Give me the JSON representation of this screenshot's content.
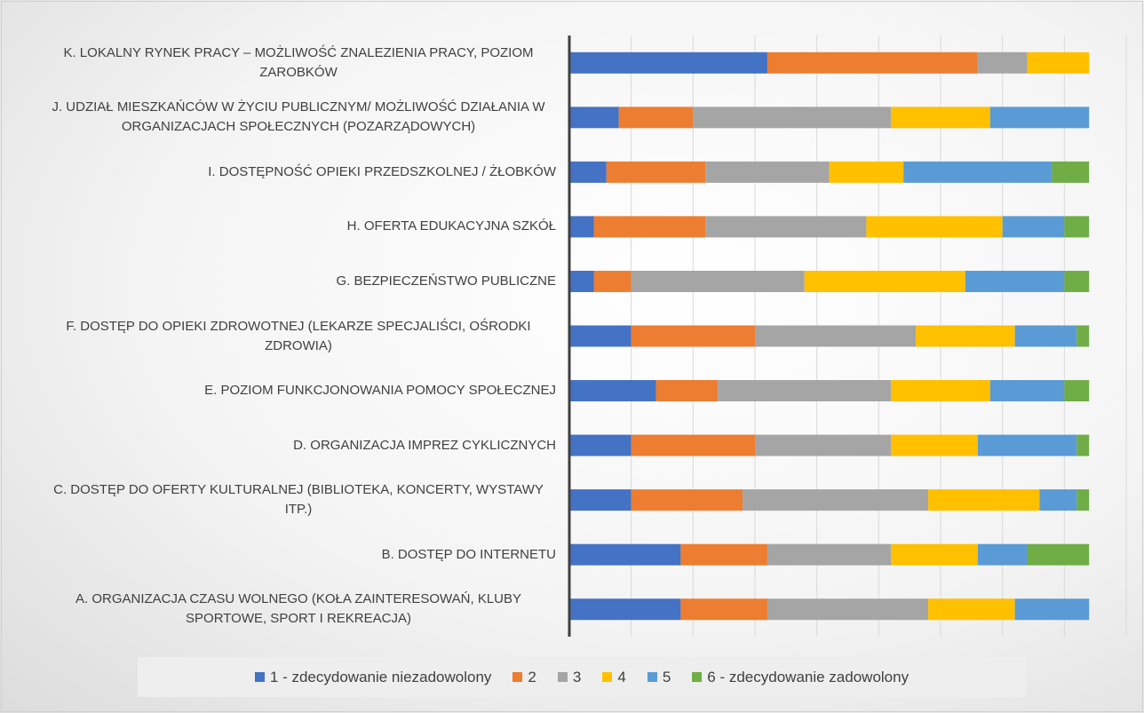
{
  "chart_data": {
    "type": "stacked-barh",
    "categories": [
      "K. LOKALNY RYNEK PRACY – MOŻLIWOŚĆ ZNALEZIENIA PRACY, POZIOM ZAROBKÓW",
      "J. UDZIAŁ MIESZKAŃCÓW W ŻYCIU PUBLICZNYM/ MOŻLIWOŚĆ DZIAŁANIA W ORGANIZACJACH SPOŁECZNYCH (POZARZĄDOWYCH)",
      "I. DOSTĘPNOŚĆ OPIEKI PRZEDSZKOLNEJ / ŻŁOBKÓW",
      "H. OFERTA EDUKACYJNA SZKÓŁ",
      "G. BEZPIECZEŃSTWO PUBLICZNE",
      "F. DOSTĘP DO OPIEKI ZDROWOTNEJ (LEKARZE SPECJALIŚCI, OŚRODKI ZDROWIA)",
      "E. POZIOM FUNKCJONOWANIA POMOCY SPOŁECZNEJ",
      "D. ORGANIZACJA IMPREZ CYKLICZNYCH",
      "C. DOSTĘP DO OFERTY KULTURALNEJ (BIBLIOTEKA, KONCERTY, WYSTAWY ITP.)",
      "B. DOSTĘP DO INTERNETU",
      "A. ORGANIZACJA CZASU WOLNEGO (KOŁA ZAINTERESOWAŃ, KLUBY SPORTOWE, SPORT I REKREACJA)"
    ],
    "series": [
      {
        "name": "1 - zdecydowanie niezadowolony",
        "color": "#4472c4",
        "values": [
          16,
          4,
          3,
          2,
          2,
          5,
          7,
          5,
          5,
          9,
          9
        ]
      },
      {
        "name": "2",
        "color": "#ed7d31",
        "values": [
          17,
          6,
          8,
          9,
          3,
          10,
          5,
          10,
          9,
          7,
          7
        ]
      },
      {
        "name": "3",
        "color": "#a5a5a5",
        "values": [
          4,
          16,
          10,
          13,
          14,
          13,
          14,
          11,
          15,
          10,
          13
        ]
      },
      {
        "name": "4",
        "color": "#ffc000",
        "values": [
          5,
          8,
          6,
          11,
          13,
          8,
          8,
          7,
          9,
          7,
          7
        ]
      },
      {
        "name": "5",
        "color": "#5b9bd5",
        "values": [
          0,
          8,
          12,
          5,
          8,
          5,
          6,
          8,
          3,
          4,
          6
        ]
      },
      {
        "name": "6 - zdecydowanie zadowolony",
        "color": "#70ad47",
        "values": [
          0,
          0,
          3,
          2,
          2,
          1,
          2,
          1,
          1,
          5,
          0
        ]
      }
    ],
    "xlim": [
      0,
      45
    ],
    "xticks": [
      0,
      5,
      10,
      15,
      20,
      25,
      30,
      35,
      40,
      45
    ],
    "grid": true,
    "show_tick_labels": false,
    "legend": "bottom"
  }
}
